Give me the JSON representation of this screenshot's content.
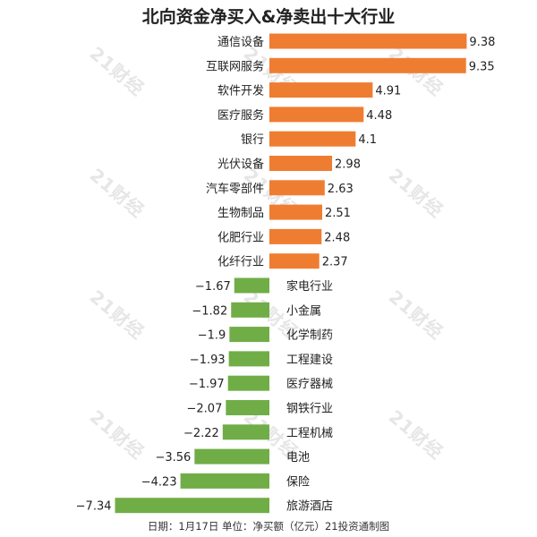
{
  "title": "北向资金净买入&净卖出十大行业",
  "footer": "日期：1月17日 单位：净买额（亿元）21投资通制图",
  "watermark": "21财经",
  "colors": {
    "positive": "#ef7d31",
    "negative": "#70ad47",
    "text": "#222222"
  },
  "chart_data": {
    "type": "bar",
    "orientation": "horizontal",
    "title": "北向资金净买入&净卖出十大行业",
    "unit": "净买额（亿元）",
    "categories": [
      "通信设备",
      "互联网服务",
      "软件开发",
      "医疗服务",
      "银行",
      "光伏设备",
      "汽车零部件",
      "生物制品",
      "化肥行业",
      "化纤行业",
      "家电行业",
      "小金属",
      "化学制药",
      "工程建设",
      "医疗器械",
      "钢铁行业",
      "工程机械",
      "电池",
      "保险",
      "旅游酒店"
    ],
    "values": [
      9.38,
      9.35,
      4.91,
      4.48,
      4.1,
      2.98,
      2.63,
      2.51,
      2.48,
      2.37,
      -1.67,
      -1.82,
      -1.9,
      -1.93,
      -1.97,
      -2.07,
      -2.22,
      -3.56,
      -4.23,
      -7.34
    ],
    "value_labels": [
      "9.38",
      "9.35",
      "4.91",
      "4.48",
      "4.1",
      "2.98",
      "2.63",
      "2.51",
      "2.48",
      "2.37",
      "−1.67",
      "−1.82",
      "−1.9",
      "−1.93",
      "−1.97",
      "−2.07",
      "−2.22",
      "−3.56",
      "−4.23",
      "−7.34"
    ],
    "xlim": [
      -7.34,
      9.38
    ],
    "grid": false,
    "legend": "none"
  }
}
